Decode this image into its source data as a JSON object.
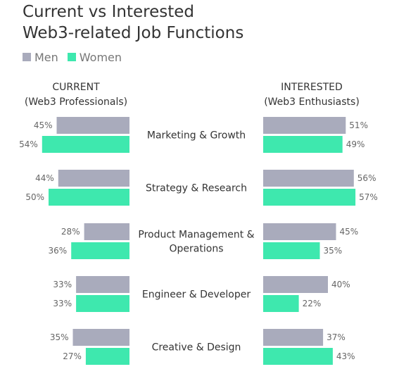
{
  "title_lines": [
    "Current vs Interested",
    "Web3-related Job Functions"
  ],
  "legend": [
    {
      "label": "Men",
      "color": "#a9abbc"
    },
    {
      "label": "Women",
      "color": "#3ee8ae"
    }
  ],
  "headers": {
    "current": [
      "CURRENT",
      "(Web3  Professionals)"
    ],
    "interested": [
      "INTERESTED",
      "(Web3 Enthusiasts)"
    ]
  },
  "chart_data": {
    "type": "bar",
    "title": "Current vs Interested Web3-related Job Functions",
    "categories": [
      "Marketing & Growth",
      "Strategy & Research",
      "Product Management & Operations",
      "Engineer & Developer",
      "Creative & Design"
    ],
    "category_lines": [
      [
        "Marketing & Growth"
      ],
      [
        "Strategy & Research"
      ],
      [
        "Product Management &",
        "Operations"
      ],
      [
        "Engineer & Developer"
      ],
      [
        "Creative & Design"
      ]
    ],
    "panels": [
      {
        "name": "CURRENT (Web3 Professionals)",
        "series": [
          {
            "name": "Men",
            "values": [
              45,
              44,
              28,
              33,
              35
            ]
          },
          {
            "name": "Women",
            "values": [
              54,
              50,
              36,
              33,
              27
            ]
          }
        ]
      },
      {
        "name": "INTERESTED (Web3 Enthusiasts)",
        "series": [
          {
            "name": "Men",
            "values": [
              51,
              56,
              45,
              40,
              37
            ]
          },
          {
            "name": "Women",
            "values": [
              49,
              57,
              35,
              22,
              43
            ]
          }
        ]
      }
    ],
    "value_suffix": "%",
    "colors": {
      "Men": "#a9abbc",
      "Women": "#3ee8ae"
    }
  }
}
